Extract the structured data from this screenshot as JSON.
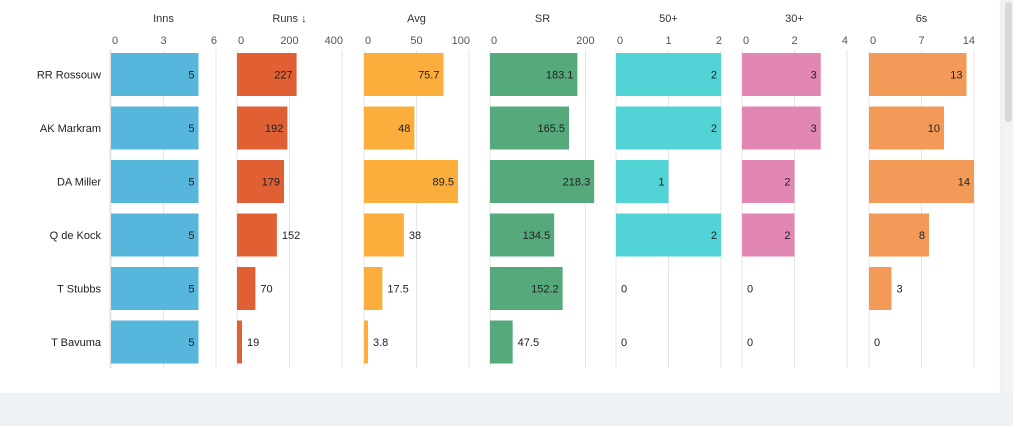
{
  "chart_data": {
    "type": "table",
    "players": [
      "RR Rossouw",
      "AK Markram",
      "DA Miller",
      "Q de Kock",
      "T Stubbs",
      "T Bavuma"
    ],
    "columns": [
      {
        "key": "inns",
        "header": "Inns",
        "color": "#56b6dc",
        "max": 6,
        "ticks": [
          0,
          3,
          6
        ],
        "values": [
          5,
          5,
          5,
          5,
          5,
          5
        ]
      },
      {
        "key": "runs",
        "header": "Runs ↓",
        "color": "#e05f33",
        "max": 400,
        "ticks": [
          0,
          200,
          400
        ],
        "values": [
          227,
          192,
          179,
          152,
          70,
          19
        ]
      },
      {
        "key": "avg",
        "header": "Avg",
        "color": "#fbae3b",
        "max": 100,
        "ticks": [
          0,
          50,
          100
        ],
        "values": [
          75.7,
          48,
          89.5,
          38,
          17.5,
          3.8
        ]
      },
      {
        "key": "sr",
        "header": "SR",
        "color": "#55a97a",
        "max": 220,
        "ticks": [
          0,
          200
        ],
        "values": [
          183.1,
          165.5,
          218.3,
          134.5,
          152.2,
          47.5
        ]
      },
      {
        "key": "fifties",
        "header": "50+",
        "color": "#52d3d6",
        "max": 2,
        "ticks": [
          0,
          1,
          2
        ],
        "values": [
          2,
          2,
          1,
          2,
          0,
          0
        ]
      },
      {
        "key": "thirties",
        "header": "30+",
        "color": "#e287b3",
        "max": 4,
        "ticks": [
          0,
          2,
          4
        ],
        "values": [
          3,
          3,
          2,
          2,
          0,
          0
        ]
      },
      {
        "key": "sixes",
        "header": "6s",
        "color": "#f49a58",
        "max": 14,
        "ticks": [
          0,
          7,
          14
        ],
        "values": [
          13,
          10,
          14,
          8,
          3,
          0
        ]
      }
    ]
  }
}
